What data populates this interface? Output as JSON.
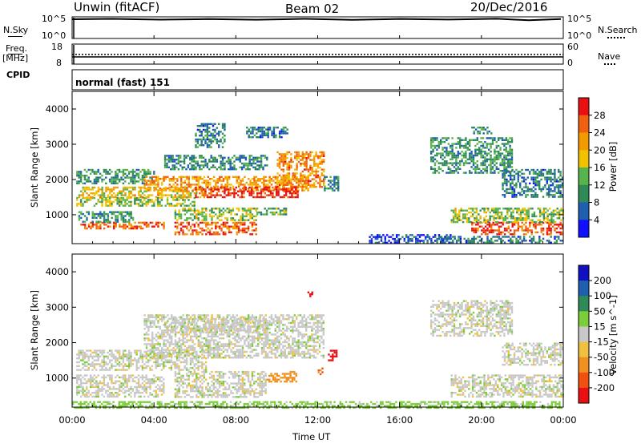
{
  "header": {
    "station": "Unwin (fitACF)",
    "beam": "Beam 02",
    "date": "20/Dec/2016"
  },
  "top_panels": {
    "nsky": {
      "label": "N.Sky",
      "ticks": [
        "10^5",
        "10^0"
      ],
      "right_ticks": [
        "10^5",
        "10^0"
      ],
      "right_label": "N.Search"
    },
    "freq": {
      "label_line1": "Freq.",
      "label_line2": "[MHz]",
      "ticks": [
        "18",
        "8"
      ],
      "right_ticks": [
        "60",
        "0"
      ],
      "right_label": "Nave"
    },
    "cpid": {
      "label": "CPID",
      "mode": "normal (fast) 151"
    }
  },
  "colors": {
    "power_scale": [
      "#1010ff",
      "#1f5fb0",
      "#2e8b57",
      "#57b34b",
      "#f2c200",
      "#f29a00",
      "#f06010",
      "#e81010"
    ],
    "velocity_scale": [
      "#1010c0",
      "#1f5fb0",
      "#2e8b57",
      "#7ccd3a",
      "#c8c8c8",
      "#f0c040",
      "#f09020",
      "#f05010",
      "#e81010"
    ],
    "frame": "#000000"
  },
  "chart_data": [
    {
      "type": "heatmap",
      "name": "power-panel",
      "xlabel": "",
      "ylabel": "Slant Range [km]",
      "x_ticks": [
        "00:00",
        "04:00",
        "08:00",
        "12:00",
        "16:00",
        "20:00",
        "00:00"
      ],
      "y_ticks": [
        "4000",
        "3000",
        "2000",
        "1000"
      ],
      "xlim": [
        0,
        24
      ],
      "ylim": [
        180,
        4500
      ],
      "colorbar": {
        "label": "Power [dB]",
        "ticks": [
          "28",
          "24",
          "20",
          "16",
          "12",
          "8",
          "4"
        ],
        "range": [
          0,
          30
        ]
      },
      "regions": [
        {
          "t": [
            0.4,
            4.5
          ],
          "r": [
            600,
            800
          ],
          "value": 24
        },
        {
          "t": [
            0.3,
            3.0
          ],
          "r": [
            800,
            1100
          ],
          "value": 10
        },
        {
          "t": [
            0.2,
            6.0
          ],
          "r": [
            1250,
            1500
          ],
          "value": 14
        },
        {
          "t": [
            0.3,
            6.5
          ],
          "r": [
            1500,
            1800
          ],
          "value": 18
        },
        {
          "t": [
            0.2,
            4.0
          ],
          "r": [
            1900,
            2300
          ],
          "value": 10
        },
        {
          "t": [
            3.5,
            11.5
          ],
          "r": [
            1700,
            2100
          ],
          "value": 20
        },
        {
          "t": [
            6.0,
            11.0
          ],
          "r": [
            1500,
            1800
          ],
          "value": 27
        },
        {
          "t": [
            10.0,
            12.3
          ],
          "r": [
            1800,
            2800
          ],
          "value": 22
        },
        {
          "t": [
            5.0,
            9.0
          ],
          "r": [
            450,
            800
          ],
          "value": 24
        },
        {
          "t": [
            5.0,
            9.0
          ],
          "r": [
            850,
            1200
          ],
          "value": 14
        },
        {
          "t": [
            9.0,
            10.5
          ],
          "r": [
            1000,
            1200
          ],
          "value": 12
        },
        {
          "t": [
            4.5,
            9.5
          ],
          "r": [
            2300,
            2700
          ],
          "value": 9
        },
        {
          "t": [
            6.0,
            7.5
          ],
          "r": [
            2900,
            3600
          ],
          "value": 8
        },
        {
          "t": [
            8.5,
            10.5
          ],
          "r": [
            3200,
            3500
          ],
          "value": 8
        },
        {
          "t": [
            12.3,
            13.0
          ],
          "r": [
            1700,
            2100
          ],
          "value": 9
        },
        {
          "t": [
            14.5,
            18.5
          ],
          "r": [
            200,
            450
          ],
          "value": 5
        },
        {
          "t": [
            18.0,
            24.0
          ],
          "r": [
            200,
            400
          ],
          "value": 8
        },
        {
          "t": [
            19.5,
            24.0
          ],
          "r": [
            450,
            800
          ],
          "value": 26
        },
        {
          "t": [
            18.5,
            24.0
          ],
          "r": [
            800,
            1200
          ],
          "value": 14
        },
        {
          "t": [
            17.5,
            21.5
          ],
          "r": [
            2200,
            3200
          ],
          "value": 10
        },
        {
          "t": [
            21.0,
            24.0
          ],
          "r": [
            1500,
            2300
          ],
          "value": 8
        },
        {
          "t": [
            19.5,
            20.5
          ],
          "r": [
            3300,
            3500
          ],
          "value": 9
        }
      ]
    },
    {
      "type": "heatmap",
      "name": "velocity-panel",
      "xlabel": "Time UT",
      "ylabel": "Slant Range [km]",
      "x_ticks": [
        "00:00",
        "04:00",
        "08:00",
        "12:00",
        "16:00",
        "20:00",
        "00:00"
      ],
      "y_ticks": [
        "4000",
        "3000",
        "2000",
        "1000"
      ],
      "xlim": [
        0,
        24
      ],
      "ylim": [
        180,
        4500
      ],
      "colorbar": {
        "label": "Velocity [m s^-1]",
        "ticks": [
          "200",
          "100",
          "50",
          "15",
          "-15",
          "-50",
          "-100",
          "-200"
        ],
        "range": [
          -250,
          250
        ]
      },
      "regions": [
        {
          "t": [
            0.2,
            4.5
          ],
          "r": [
            500,
            1100
          ],
          "value": 0
        },
        {
          "t": [
            0.2,
            6.5
          ],
          "r": [
            1250,
            1800
          ],
          "value": 0
        },
        {
          "t": [
            3.5,
            12.3
          ],
          "r": [
            1600,
            2800
          ],
          "value": 0
        },
        {
          "t": [
            5.0,
            9.5
          ],
          "r": [
            450,
            1200
          ],
          "value": 0
        },
        {
          "t": [
            4.5,
            9.5
          ],
          "r": [
            2300,
            2700
          ],
          "value": 0
        },
        {
          "t": [
            9.5,
            11.0
          ],
          "r": [
            900,
            1200
          ],
          "value": -80
        },
        {
          "t": [
            12.5,
            12.9
          ],
          "r": [
            1500,
            1800
          ],
          "value": -230
        },
        {
          "t": [
            11.5,
            11.7
          ],
          "r": [
            3300,
            3500
          ],
          "value": -230
        },
        {
          "t": [
            12.0,
            12.3
          ],
          "r": [
            1100,
            1300
          ],
          "value": -100
        },
        {
          "t": [
            18.5,
            24.0
          ],
          "r": [
            450,
            1100
          ],
          "value": 0
        },
        {
          "t": [
            17.5,
            21.5
          ],
          "r": [
            2200,
            3200
          ],
          "value": 0
        },
        {
          "t": [
            21.0,
            24.0
          ],
          "r": [
            1400,
            2000
          ],
          "value": 0
        },
        {
          "t": [
            0.0,
            24.0
          ],
          "r": [
            180,
            350
          ],
          "value": 30
        }
      ]
    }
  ]
}
